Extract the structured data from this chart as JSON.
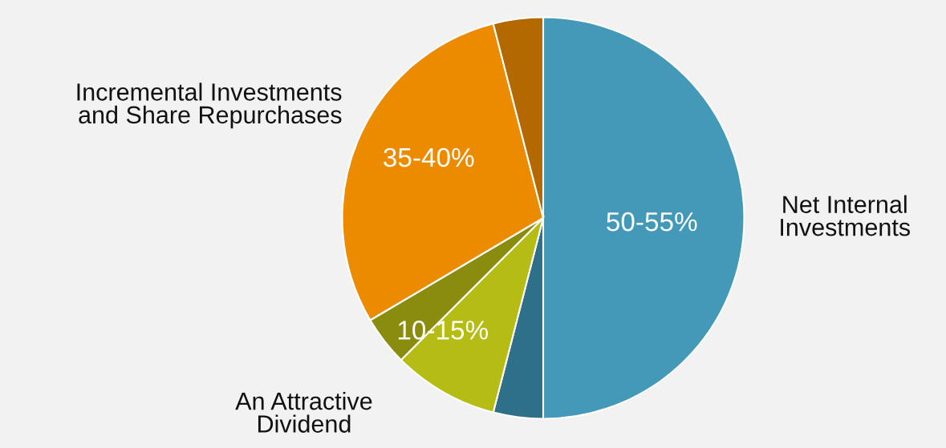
{
  "chart_data": {
    "type": "pie",
    "categories": [
      "Net Internal\nInvestments",
      null,
      "An Attractive\nDividend",
      null,
      "Incremental Investments\nand Share Repurchases",
      null
    ],
    "values": [
      50,
      4,
      8.5,
      4,
      29.5,
      4
    ],
    "colors": [
      "#4499b8",
      "#2e7089",
      "#b5bd14",
      "#8a8c0e",
      "#ed8b00",
      "#b36800"
    ],
    "annotations": [
      "50-55%",
      "10-15%",
      "35-40%"
    ]
  }
}
